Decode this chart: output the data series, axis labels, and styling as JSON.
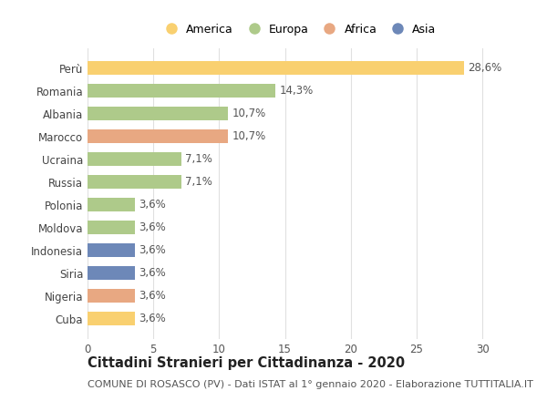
{
  "countries": [
    "Perù",
    "Romania",
    "Albania",
    "Marocco",
    "Ucraina",
    "Russia",
    "Polonia",
    "Moldova",
    "Indonesia",
    "Siria",
    "Nigeria",
    "Cuba"
  ],
  "values": [
    28.6,
    14.3,
    10.7,
    10.7,
    7.1,
    7.1,
    3.6,
    3.6,
    3.6,
    3.6,
    3.6,
    3.6
  ],
  "labels": [
    "28,6%",
    "14,3%",
    "10,7%",
    "10,7%",
    "7,1%",
    "7,1%",
    "3,6%",
    "3,6%",
    "3,6%",
    "3,6%",
    "3,6%",
    "3,6%"
  ],
  "colors": [
    "#F9D070",
    "#AECA8A",
    "#AECA8A",
    "#E8A882",
    "#AECA8A",
    "#AECA8A",
    "#AECA8A",
    "#AECA8A",
    "#6D88B8",
    "#6D88B8",
    "#E8A882",
    "#F9D070"
  ],
  "categories": [
    "America",
    "Europa",
    "Africa",
    "Asia"
  ],
  "legend_colors": [
    "#F9D070",
    "#AECA8A",
    "#E8A882",
    "#6D88B8"
  ],
  "title": "Cittadini Stranieri per Cittadinanza - 2020",
  "subtitle": "COMUNE DI ROSASCO (PV) - Dati ISTAT al 1° gennaio 2020 - Elaborazione TUTTITALIA.IT",
  "xlim": [
    0,
    32
  ],
  "xticks": [
    0,
    5,
    10,
    15,
    20,
    25,
    30
  ],
  "bg_color": "#ffffff",
  "grid_color": "#e0e0e0",
  "bar_height": 0.6,
  "label_fontsize": 8.5,
  "ytick_fontsize": 8.5,
  "xtick_fontsize": 8.5,
  "title_fontsize": 10.5,
  "subtitle_fontsize": 8
}
